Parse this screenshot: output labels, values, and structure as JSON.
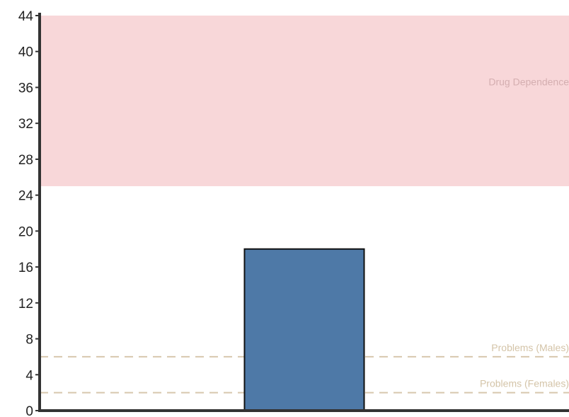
{
  "chart_data": {
    "type": "bar",
    "title": "",
    "xlabel": "",
    "ylabel": "",
    "categories": [
      ""
    ],
    "values": [
      18
    ],
    "ylim": [
      0,
      44
    ],
    "yticks": [
      0,
      4,
      8,
      12,
      16,
      20,
      24,
      28,
      32,
      36,
      40,
      44
    ],
    "grid": false,
    "legend": "none",
    "colors": {
      "bar_fill": "#4e79a7",
      "bar_stroke": "#111111",
      "axis": "#333333",
      "band_fill": "#f8d7d9",
      "band_label": "#d4aeb0",
      "threshold_line": "#d8c8ae",
      "threshold_label": "#d4c4a8"
    },
    "bands": [
      {
        "label": "Drug Dependence",
        "from": 25,
        "to": 44
      }
    ],
    "thresholds": [
      {
        "label": "Problems (Males)",
        "value": 6
      },
      {
        "label": "Problems (Females)",
        "value": 2
      }
    ]
  }
}
